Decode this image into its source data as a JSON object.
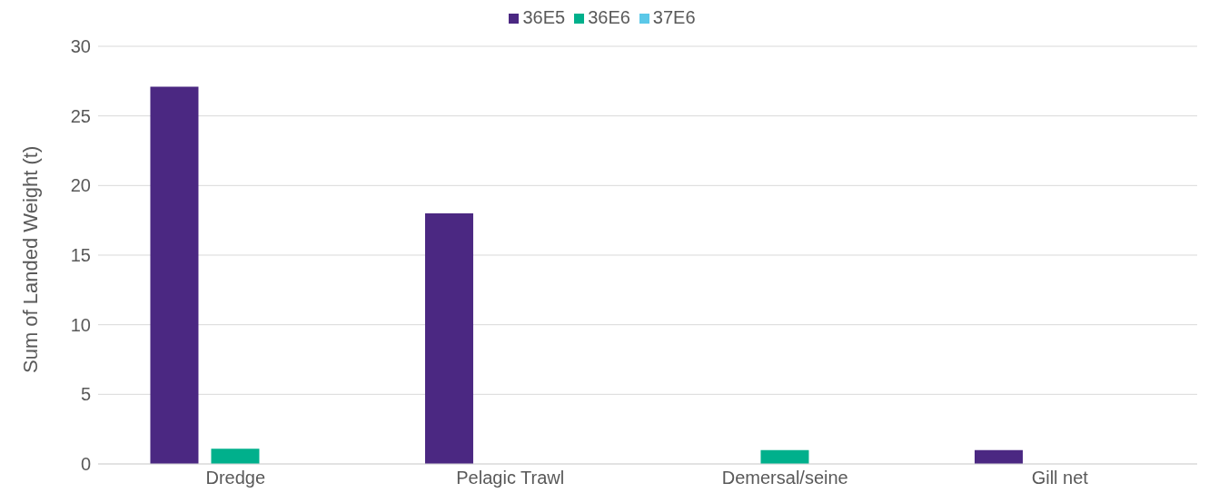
{
  "chart_data": {
    "type": "bar",
    "ylabel": "Sum of Landed Weight (t)",
    "categories": [
      "Dredge",
      "Pelagic Trawl",
      "Demersal/seine",
      "Gill net"
    ],
    "series": [
      {
        "name": "36E5",
        "color": "#4b2882",
        "values": [
          27.1,
          18.0,
          null,
          1.0
        ]
      },
      {
        "name": "36E6",
        "color": "#00b08c",
        "values": [
          1.1,
          null,
          1.0,
          null
        ]
      },
      {
        "name": "37E6",
        "color": "#5bc8e8",
        "values": [
          null,
          null,
          null,
          null
        ]
      }
    ],
    "ylim": [
      0,
      30
    ],
    "yticks": [
      0,
      5,
      10,
      15,
      20,
      25,
      30
    ],
    "grid": "y",
    "legend": "top"
  }
}
